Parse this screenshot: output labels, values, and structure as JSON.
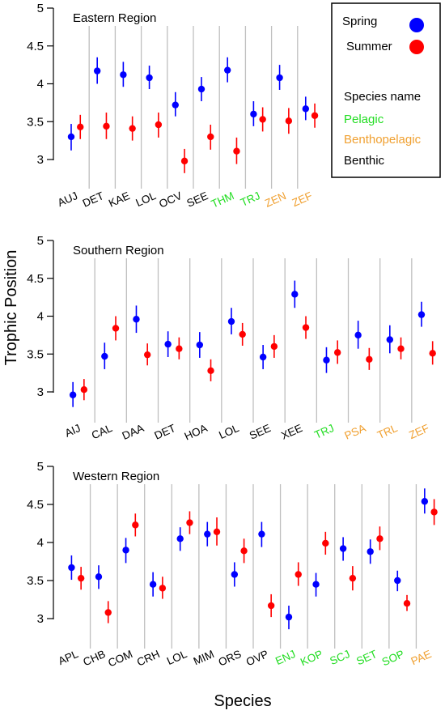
{
  "figure": {
    "ylabel": "Trophic Position",
    "xlabel": "Species"
  },
  "legend": {
    "series": [
      {
        "name": "Spring",
        "color": "#0000ff"
      },
      {
        "name": "Summer",
        "color": "#ff0000"
      }
    ],
    "title": "Species name",
    "habitats": [
      {
        "name": "Pelagic",
        "color": "#22dd22"
      },
      {
        "name": "Benthopelagic",
        "color": "#f0a030"
      },
      {
        "name": "Benthic",
        "color": "#000000"
      }
    ]
  },
  "chart_data": [
    {
      "type": "scatter",
      "title": "Eastern Region",
      "ylim": [
        2.65,
        5
      ],
      "yticks": [
        "5",
        "4.5",
        "4",
        "3.5",
        "3"
      ],
      "categories": [
        "AUJ",
        "DET",
        "KAE",
        "LOL",
        "OCV",
        "SEE",
        "THM",
        "TRJ",
        "ZEN",
        "ZEF"
      ],
      "category_habitat": [
        "Benthic",
        "Benthic",
        "Benthic",
        "Benthic",
        "Benthic",
        "Benthic",
        "Pelagic",
        "Pelagic",
        "Benthopelagic",
        "Benthopelagic"
      ],
      "series": [
        {
          "name": "Spring",
          "values": [
            3.3,
            4.17,
            4.12,
            4.08,
            3.72,
            3.93,
            4.18,
            3.6,
            4.08,
            3.67
          ],
          "lower": [
            3.12,
            4.0,
            3.96,
            3.93,
            3.57,
            3.77,
            4.02,
            3.44,
            3.92,
            3.52
          ],
          "upper": [
            3.47,
            4.35,
            4.29,
            4.24,
            3.89,
            4.09,
            4.35,
            3.77,
            4.25,
            3.83
          ]
        },
        {
          "name": "Summer",
          "values": [
            3.43,
            3.44,
            3.41,
            3.46,
            2.98,
            3.3,
            3.11,
            3.53,
            3.51,
            3.58
          ],
          "lower": [
            3.27,
            3.27,
            3.25,
            3.29,
            2.82,
            3.13,
            2.94,
            3.37,
            3.34,
            3.42
          ],
          "upper": [
            3.59,
            3.62,
            3.57,
            3.62,
            3.14,
            3.46,
            3.29,
            3.69,
            3.68,
            3.74
          ]
        }
      ]
    },
    {
      "type": "scatter",
      "title": "Southern Region",
      "ylim": [
        2.8,
        5
      ],
      "yticks": [
        "5",
        "4.5",
        "4",
        "3.5",
        "3"
      ],
      "categories": [
        "AIJ",
        "CAL",
        "DAA",
        "DET",
        "HOA",
        "LOL",
        "SEE",
        "XEE",
        "TRJ",
        "PSA",
        "TRL",
        "ZEF"
      ],
      "category_habitat": [
        "Benthic",
        "Benthic",
        "Benthic",
        "Benthic",
        "Benthic",
        "Benthic",
        "Benthic",
        "Benthic",
        "Pelagic",
        "Benthopelagic",
        "Benthopelagic",
        "Benthopelagic"
      ],
      "series": [
        {
          "name": "Spring",
          "values": [
            2.96,
            3.47,
            3.96,
            3.63,
            3.62,
            3.93,
            3.46,
            4.29,
            3.42,
            3.75,
            3.69,
            4.02
          ],
          "lower": [
            2.8,
            3.3,
            3.78,
            3.46,
            3.45,
            3.76,
            3.3,
            4.11,
            3.25,
            3.57,
            3.51,
            3.86
          ],
          "upper": [
            3.13,
            3.65,
            4.14,
            3.8,
            3.79,
            4.11,
            3.62,
            4.47,
            3.59,
            3.94,
            3.88,
            4.19
          ]
        },
        {
          "name": "Summer",
          "values": [
            3.03,
            3.84,
            3.49,
            3.57,
            3.28,
            3.76,
            3.6,
            3.85,
            3.52,
            3.43,
            3.57,
            3.51
          ],
          "lower": [
            2.89,
            3.68,
            3.35,
            3.43,
            3.14,
            3.61,
            3.45,
            3.7,
            3.37,
            3.29,
            3.43,
            3.36
          ],
          "upper": [
            3.17,
            4.0,
            3.64,
            3.72,
            3.43,
            3.91,
            3.75,
            4.0,
            3.68,
            3.58,
            3.72,
            3.67
          ]
        }
      ]
    },
    {
      "type": "scatter",
      "title": "Western Region",
      "ylim": [
        2.75,
        5
      ],
      "yticks": [
        "5",
        "4.5",
        "4",
        "3.5",
        "3"
      ],
      "categories": [
        "APL",
        "CHB",
        "COM",
        "CRH",
        "LOL",
        "MIM",
        "ORS",
        "OVP",
        "ENJ",
        "KOP",
        "SCJ",
        "SET",
        "SOP",
        "PAE"
      ],
      "category_habitat": [
        "Benthic",
        "Benthic",
        "Benthic",
        "Benthic",
        "Benthic",
        "Benthic",
        "Benthic",
        "Benthic",
        "Pelagic",
        "Pelagic",
        "Pelagic",
        "Pelagic",
        "Pelagic",
        "Benthopelagic"
      ],
      "series": [
        {
          "name": "Spring",
          "values": [
            3.67,
            3.55,
            3.9,
            3.45,
            4.05,
            4.11,
            3.58,
            4.11,
            3.02,
            3.45,
            3.92,
            3.88,
            3.5,
            4.54
          ],
          "lower": [
            3.51,
            3.39,
            3.73,
            3.29,
            3.89,
            3.95,
            3.42,
            3.94,
            2.86,
            3.29,
            3.76,
            3.72,
            3.36,
            4.38
          ],
          "upper": [
            3.83,
            3.7,
            4.06,
            3.61,
            4.2,
            4.27,
            3.74,
            4.27,
            3.17,
            3.6,
            4.07,
            4.04,
            3.63,
            4.71
          ]
        },
        {
          "name": "Summer",
          "values": [
            3.53,
            3.08,
            4.23,
            3.4,
            4.26,
            4.14,
            3.89,
            3.17,
            3.58,
            3.99,
            3.53,
            4.05,
            3.2,
            4.4
          ],
          "lower": [
            3.38,
            2.94,
            4.08,
            3.26,
            4.11,
            3.96,
            3.73,
            3.02,
            3.43,
            3.84,
            3.37,
            3.9,
            3.1,
            4.23
          ],
          "upper": [
            3.68,
            3.23,
            4.38,
            3.55,
            4.41,
            4.33,
            4.05,
            3.32,
            3.74,
            4.14,
            3.69,
            4.21,
            3.31,
            4.57
          ]
        }
      ]
    }
  ]
}
